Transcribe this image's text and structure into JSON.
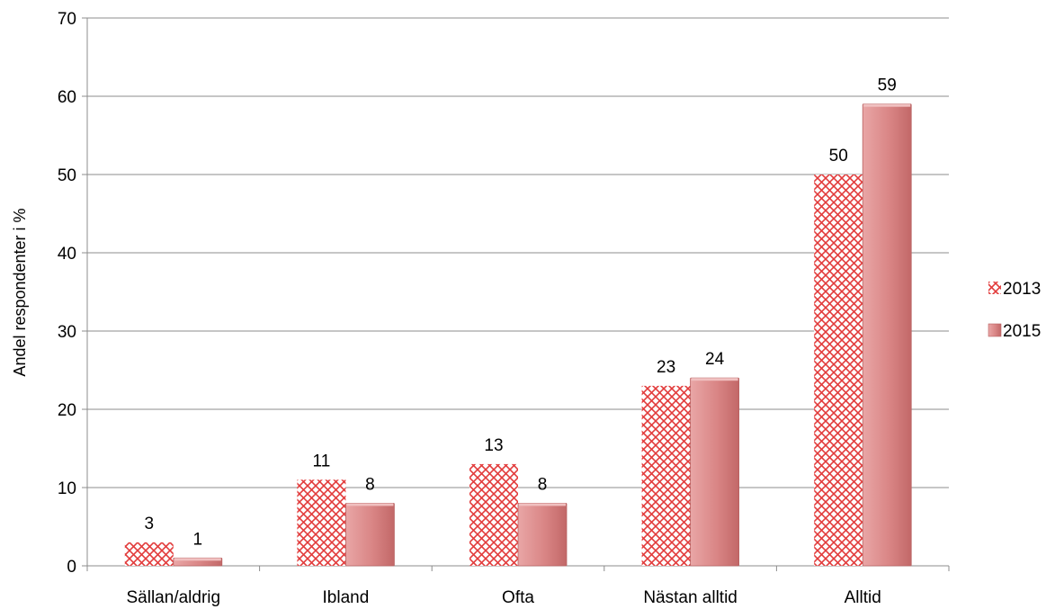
{
  "chart_data": {
    "type": "bar",
    "title": "",
    "xlabel": "",
    "ylabel": "Andel respondenter i %",
    "ylim": [
      0,
      70
    ],
    "yticks": [
      0,
      10,
      20,
      30,
      40,
      50,
      60,
      70
    ],
    "grid": true,
    "legend_position": "right",
    "categories": [
      "Sällan/aldrig",
      "Ibland",
      "Ofta",
      "Nästan alltid",
      "Alltid"
    ],
    "series": [
      {
        "name": "2013",
        "values": [
          3,
          11,
          13,
          23,
          50
        ],
        "color": "#e23b3b",
        "pattern": "crosshatch"
      },
      {
        "name": "2015",
        "values": [
          1,
          8,
          8,
          24,
          59
        ],
        "color": "#d87b7b",
        "pattern": "solid-gradient"
      }
    ]
  }
}
